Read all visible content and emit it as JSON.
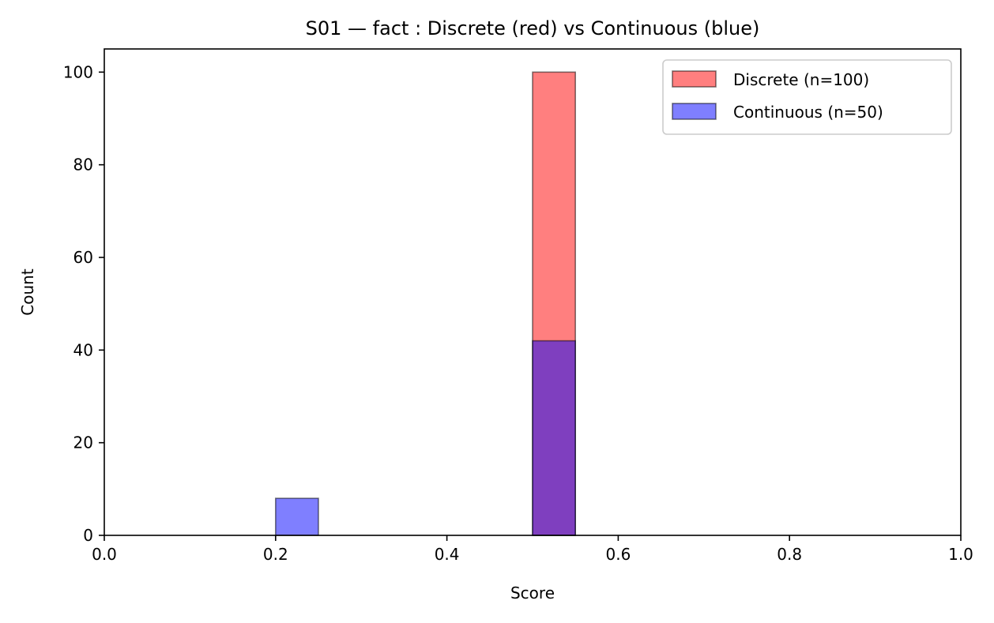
{
  "chart_data": {
    "type": "bar",
    "title": "S01 — fact : Discrete (red) vs Continuous (blue)",
    "xlabel": "Score",
    "ylabel": "Count",
    "xlim": [
      0.0,
      1.0
    ],
    "ylim": [
      0,
      105
    ],
    "xticks": [
      0.0,
      0.2,
      0.4,
      0.6,
      0.8,
      1.0
    ],
    "xtick_labels": [
      "0.0",
      "0.2",
      "0.4",
      "0.6",
      "0.8",
      "1.0"
    ],
    "yticks": [
      0,
      20,
      40,
      60,
      80,
      100
    ],
    "ytick_labels": [
      "0",
      "20",
      "40",
      "60",
      "80",
      "100"
    ],
    "grid": false,
    "legend_position": "top-right",
    "bin_width": 0.05,
    "series": [
      {
        "name": "Discrete (n=100)",
        "color": "#ff0000",
        "opacity": 0.5,
        "bins": [
          {
            "x0": 0.5,
            "x1": 0.55,
            "count": 100
          }
        ]
      },
      {
        "name": "Continuous (n=50)",
        "color": "#0000ff",
        "opacity": 0.5,
        "bins": [
          {
            "x0": 0.2,
            "x1": 0.25,
            "count": 8
          },
          {
            "x0": 0.5,
            "x1": 0.55,
            "count": 42
          }
        ]
      }
    ]
  }
}
